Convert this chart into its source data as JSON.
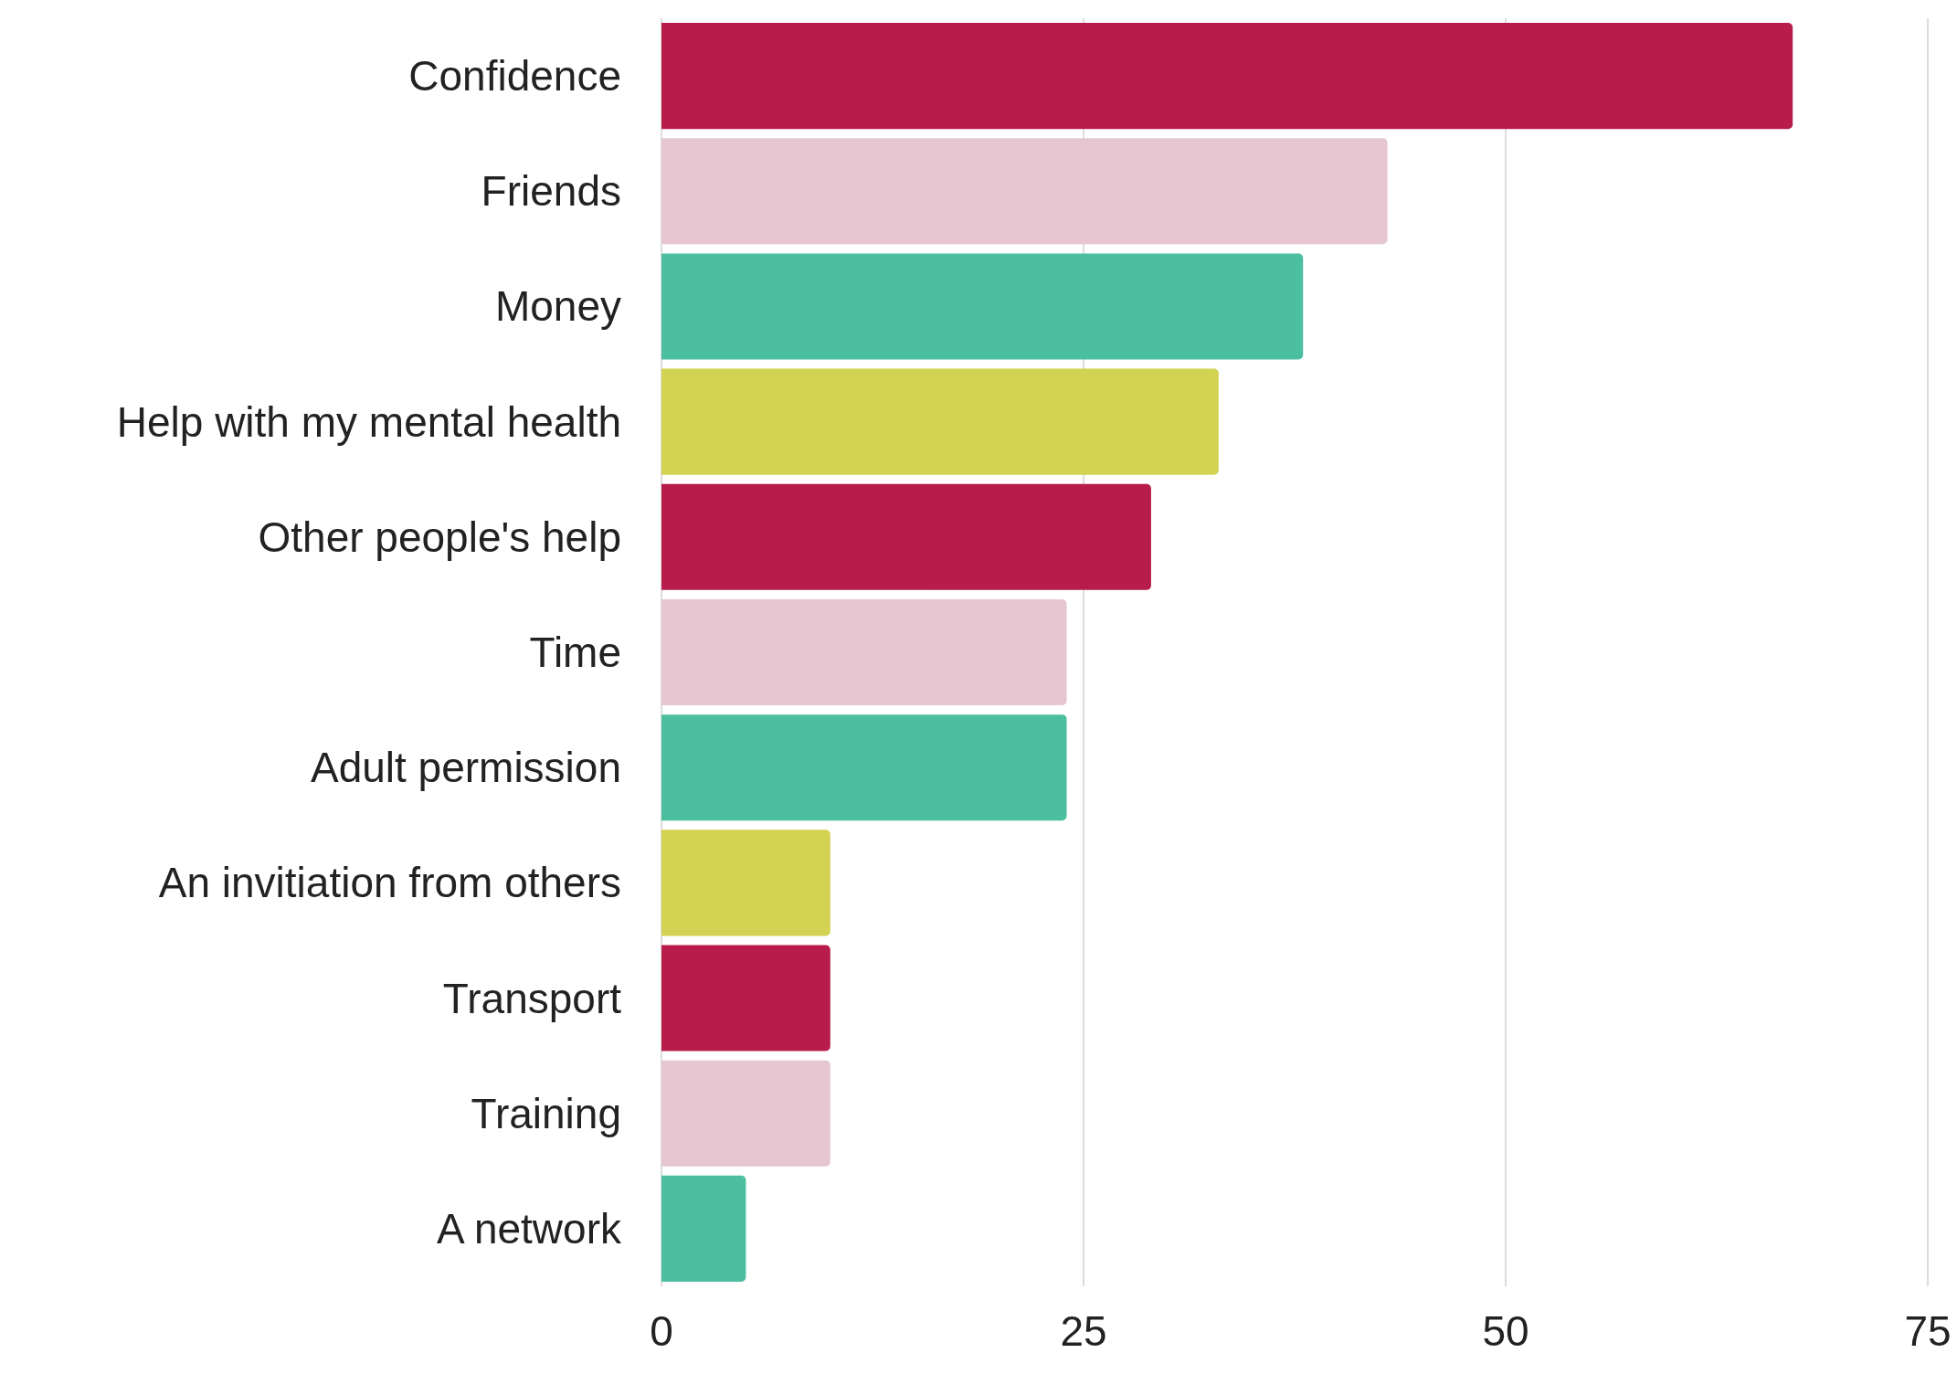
{
  "chart_data": {
    "type": "bar",
    "orientation": "horizontal",
    "categories": [
      "Confidence",
      "Friends",
      "Money",
      "Help with my mental health",
      "Other people's help",
      "Time",
      "Adult permission",
      "An invitiation from others",
      "Transport",
      "Training",
      "A network"
    ],
    "values": [
      67,
      43,
      38,
      33,
      29,
      24,
      24,
      10,
      10,
      10,
      5
    ],
    "colors": [
      "#b81c4a",
      "#e6c6d1",
      "#4bbf9f",
      "#d2d253",
      "#b81c4a",
      "#e6c6d1",
      "#4bbf9f",
      "#d2d253",
      "#b81c4a",
      "#e6c6d1",
      "#4bbf9f"
    ],
    "xlim": [
      0,
      75
    ],
    "xticks": [
      0,
      25,
      50,
      75
    ],
    "grid": "x"
  }
}
